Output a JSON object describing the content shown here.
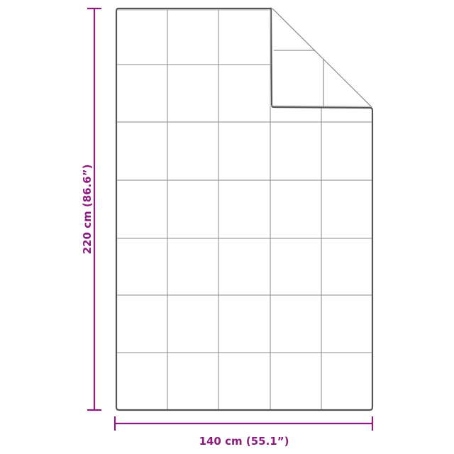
{
  "dimensions": {
    "height_label": "220 cm (86.6”)",
    "width_label": "140 cm (55.1”)"
  },
  "product": {
    "grid_columns": 5,
    "grid_rows": 7,
    "corner_folded": "top-right"
  },
  "colors": {
    "dimension": "#8c1d7f",
    "outline": "#555555",
    "grid": "#8a8a8a"
  }
}
